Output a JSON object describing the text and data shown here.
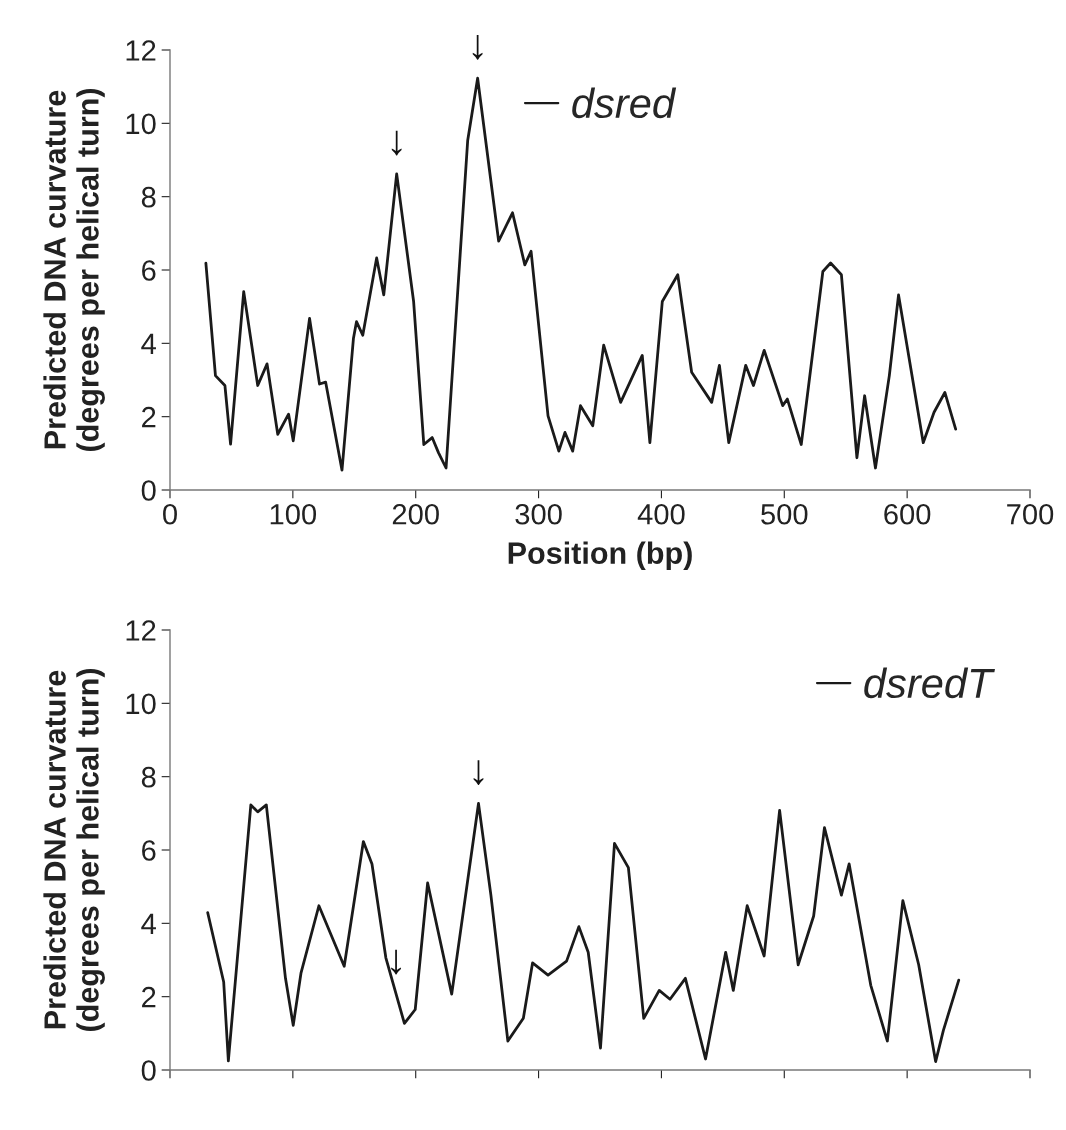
{
  "chart_data": [
    {
      "type": "line",
      "ylabel": "Predicted DNA curvature\n(degrees per helical turn)",
      "xlabel": null,
      "xlim": [
        0,
        700
      ],
      "xticks": [
        0,
        100,
        200,
        300,
        400,
        500,
        600,
        700
      ],
      "ylim": [
        0,
        12
      ],
      "yticks": [
        0,
        2,
        4,
        6,
        8,
        10,
        12
      ],
      "tick_labels": "y",
      "grid": false,
      "legend": "top right",
      "line_style": "solid",
      "annotations": [
        {
          "text": "↓",
          "x": 184,
          "y": 2.1
        },
        {
          "text": "↓",
          "x": 251.1,
          "y": 7.27
        }
      ],
      "series": [
        {
          "name": "dsredT",
          "color": "#1a1a1a",
          "x": [
            30.7,
            43.7,
            47.5,
            65.8,
            71.4,
            78.4,
            94,
            100.3,
            106.6,
            121.2,
            141.8,
            157.4,
            164.4,
            175.7,
            190.8,
            199.6,
            209.7,
            229.3,
            251.1,
            261.2,
            275,
            287.6,
            295.1,
            307.7,
            322.8,
            332.8,
            340.4,
            350.4,
            361.8,
            373.1,
            385.6,
            398.2,
            407,
            419.5,
            435.9,
            452.3,
            458.5,
            469.8,
            483.6,
            496.2,
            511.3,
            523.9,
            532.7,
            546.5,
            552.8,
            570.4,
            583.9,
            596.5,
            609.4,
            623.2,
            629.5,
            642
          ],
          "values": [
            4.29,
            2.4,
            0.25,
            7.23,
            7.04,
            7.23,
            2.5,
            1.22,
            2.64,
            4.48,
            2.83,
            6.23,
            5.62,
            3.06,
            1.27,
            1.65,
            5.1,
            2.07,
            7.27,
            4.77,
            0.79,
            1.41,
            2.92,
            2.59,
            2.97,
            3.91,
            3.21,
            0.6,
            6.18,
            5.52,
            1.41,
            2.17,
            1.93,
            2.5,
            0.3,
            3.21,
            2.17,
            4.48,
            3.11,
            7.08,
            2.87,
            4.2,
            6.61,
            4.77,
            5.62,
            2.31,
            0.79,
            4.62,
            2.87,
            0.23,
            1.08,
            2.45
          ]
        }
      ]
    },
    {
      "type": "line",
      "ylabel": "Predicted DNA curvature\n(degrees per helical turn)",
      "xlabel": "Position (bp)",
      "xlim": [
        0,
        700
      ],
      "xticks": [
        0,
        100,
        200,
        300,
        400,
        500,
        600,
        700
      ],
      "ylim": [
        0,
        12
      ],
      "yticks": [
        0,
        2,
        4,
        6,
        8,
        10,
        12
      ],
      "grid": false,
      "legend": "top",
      "line_style": "solid",
      "annotations": [
        {
          "text": "↓",
          "x": 184.5,
          "y": 8.62
        },
        {
          "text": "↓",
          "x": 250.4,
          "y": 11.23
        }
      ],
      "series": [
        {
          "name": "dsred",
          "color": "#1a1a1a",
          "x": [
            29.2,
            37,
            44.7,
            49.3,
            60,
            71.4,
            79,
            87.7,
            96.5,
            100.3,
            113.6,
            121.7,
            126.7,
            140,
            149.3,
            151.8,
            156.9,
            168.2,
            174,
            184.5,
            198.3,
            206.6,
            213.4,
            218.5,
            224.7,
            242.3,
            250.4,
            267.5,
            278.8,
            288.8,
            293.9,
            307.7,
            316.5,
            321.5,
            327.8,
            334.1,
            344.1,
            353,
            366.8,
            384.4,
            390.6,
            400.7,
            413.3,
            424.6,
            440.9,
            447.2,
            454.8,
            468.6,
            474.9,
            483.6,
            498.7,
            502.5,
            513.8,
            531.4,
            537.7,
            546.5,
            559.1,
            565.4,
            574.2,
            585.5,
            593,
            613.1,
            621.9,
            630.7,
            639.5
          ],
          "values": [
            6.19,
            3.12,
            2.85,
            1.25,
            5.41,
            2.85,
            3.44,
            1.52,
            2.07,
            1.34,
            4.68,
            2.89,
            2.94,
            0.54,
            4.13,
            4.59,
            4.22,
            6.33,
            5.32,
            8.62,
            5.14,
            1.24,
            1.43,
            1.02,
            0.6,
            9.53,
            11.23,
            6.79,
            7.56,
            6.14,
            6.51,
            2.02,
            1.06,
            1.57,
            1.06,
            2.3,
            1.75,
            3.95,
            2.39,
            3.67,
            1.29,
            5.14,
            5.87,
            3.21,
            2.39,
            3.4,
            1.29,
            3.4,
            2.85,
            3.81,
            2.3,
            2.48,
            1.24,
            5.96,
            6.19,
            5.87,
            0.88,
            2.57,
            0.6,
            3.12,
            5.32,
            1.29,
            2.12,
            2.66,
            1.66
          ]
        }
      ]
    }
  ]
}
